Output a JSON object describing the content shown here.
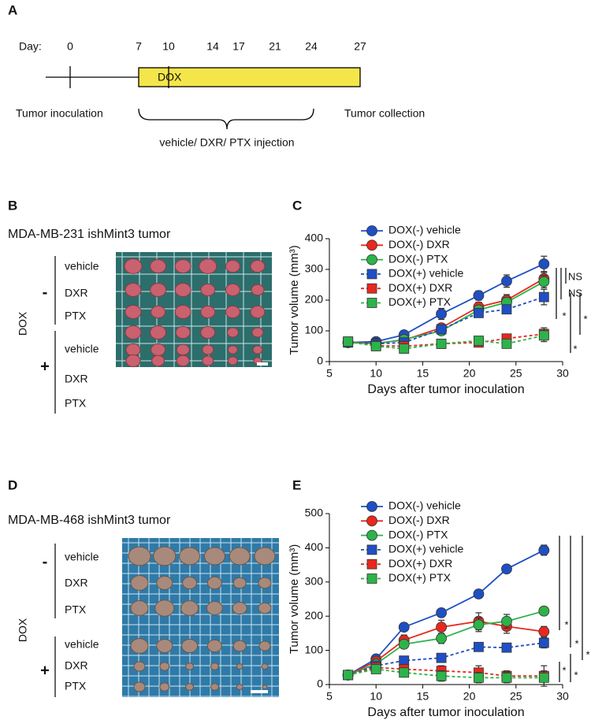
{
  "panels": {
    "a": {
      "label": "A",
      "day_label": "Day:",
      "days": [
        0,
        7,
        10,
        14,
        17,
        21,
        24,
        27
      ],
      "treatment": "DOX",
      "start": "Tumor inoculation",
      "end": "Tumor collection",
      "injection": "vehicle/ DXR/ PTX injection"
    },
    "b": {
      "label": "B",
      "title": "MDA-MB-231 ishMint3 tumor",
      "factor": "DOX",
      "groups": [
        {
          "sign": "-",
          "rows": [
            "vehicle",
            "DXR",
            "PTX"
          ]
        },
        {
          "sign": "+",
          "rows": [
            "vehicle",
            "DXR",
            "PTX"
          ]
        }
      ]
    },
    "d": {
      "label": "D",
      "title": "MDA-MB-468 ishMint3 tumor",
      "factor": "DOX",
      "groups": [
        {
          "sign": "-",
          "rows": [
            "vehicle",
            "DXR",
            "PTX"
          ]
        },
        {
          "sign": "+",
          "rows": [
            "vehicle",
            "DXR",
            "PTX"
          ]
        }
      ]
    }
  },
  "chart_data": [
    {
      "type": "line",
      "panel": "C",
      "xlabel": "Days after tumor inoculation",
      "ylabel": "Tumor volume (mm³)",
      "x": [
        7,
        10,
        13,
        17,
        21,
        24,
        28
      ],
      "xlim": [
        5,
        30
      ],
      "xticks": [
        5,
        10,
        15,
        20,
        25,
        30
      ],
      "ylim": [
        0,
        400
      ],
      "yticks": [
        0,
        100,
        200,
        300,
        400
      ],
      "series": [
        {
          "name": "DOX(-) vehicle",
          "color": "#1f4fc4",
          "marker": "circle",
          "dashed": false,
          "values": [
            62,
            65,
            87,
            155,
            215,
            262,
            318
          ],
          "errors": [
            5,
            5,
            8,
            18,
            15,
            20,
            25
          ]
        },
        {
          "name": "DOX(-) DXR",
          "color": "#e8281e",
          "marker": "circle",
          "dashed": false,
          "values": [
            62,
            60,
            70,
            110,
            178,
            200,
            270
          ],
          "errors": [
            5,
            5,
            6,
            12,
            15,
            18,
            20
          ]
        },
        {
          "name": "DOX(-) PTX",
          "color": "#2db34a",
          "marker": "circle",
          "dashed": false,
          "values": [
            62,
            58,
            72,
            100,
            168,
            193,
            260
          ],
          "errors": [
            5,
            5,
            6,
            12,
            12,
            15,
            20
          ]
        },
        {
          "name": "DOX(+) vehicle",
          "color": "#1f4fc4",
          "marker": "square",
          "dashed": true,
          "values": [
            62,
            58,
            62,
            105,
            158,
            170,
            210
          ],
          "errors": [
            5,
            5,
            6,
            10,
            12,
            12,
            25
          ]
        },
        {
          "name": "DOX(+) DXR",
          "color": "#e8281e",
          "marker": "square",
          "dashed": true,
          "values": [
            65,
            52,
            50,
            58,
            62,
            75,
            90
          ],
          "errors": [
            5,
            5,
            6,
            10,
            8,
            10,
            20
          ]
        },
        {
          "name": "DOX(+) PTX",
          "color": "#2db34a",
          "marker": "square",
          "dashed": true,
          "values": [
            65,
            50,
            42,
            58,
            68,
            58,
            85
          ],
          "errors": [
            5,
            5,
            6,
            10,
            8,
            10,
            20
          ]
        }
      ],
      "annotations": [
        "NS",
        "NS",
        "*",
        "*",
        "*"
      ]
    },
    {
      "type": "line",
      "panel": "E",
      "xlabel": "Days after tumor inoculation",
      "ylabel": "Tumor volume (mm³)",
      "x": [
        7,
        10,
        13,
        17,
        21,
        24,
        28
      ],
      "xlim": [
        5,
        30
      ],
      "xticks": [
        5,
        10,
        15,
        20,
        25,
        30
      ],
      "ylim": [
        0,
        500
      ],
      "yticks": [
        0,
        100,
        200,
        300,
        400,
        500
      ],
      "series": [
        {
          "name": "DOX(-) vehicle",
          "color": "#1f4fc4",
          "marker": "circle",
          "dashed": false,
          "values": [
            28,
            75,
            168,
            210,
            265,
            338,
            393
          ],
          "errors": [
            5,
            8,
            10,
            12,
            12,
            12,
            15
          ]
        },
        {
          "name": "DOX(-) DXR",
          "color": "#e8281e",
          "marker": "circle",
          "dashed": false,
          "values": [
            28,
            68,
            130,
            168,
            185,
            170,
            155
          ],
          "errors": [
            5,
            8,
            15,
            20,
            25,
            20,
            15
          ]
        },
        {
          "name": "DOX(-) PTX",
          "color": "#2db34a",
          "marker": "circle",
          "dashed": false,
          "values": [
            28,
            60,
            118,
            135,
            175,
            185,
            215
          ],
          "errors": [
            5,
            8,
            12,
            15,
            20,
            20,
            10
          ]
        },
        {
          "name": "DOX(+) vehicle",
          "color": "#1f4fc4",
          "marker": "square",
          "dashed": true,
          "values": [
            28,
            55,
            70,
            78,
            110,
            108,
            122
          ],
          "errors": [
            5,
            8,
            10,
            10,
            12,
            12,
            15
          ]
        },
        {
          "name": "DOX(+) DXR",
          "color": "#e8281e",
          "marker": "square",
          "dashed": true,
          "values": [
            28,
            50,
            45,
            40,
            35,
            25,
            25
          ],
          "errors": [
            5,
            8,
            10,
            15,
            20,
            15,
            30
          ]
        },
        {
          "name": "DOX(+) PTX",
          "color": "#2db34a",
          "marker": "square",
          "dashed": true,
          "values": [
            28,
            45,
            35,
            25,
            20,
            20,
            20
          ],
          "errors": [
            5,
            8,
            10,
            15,
            15,
            15,
            20
          ]
        }
      ],
      "annotations": [
        "*",
        "*",
        "*",
        "*",
        "*"
      ]
    }
  ]
}
